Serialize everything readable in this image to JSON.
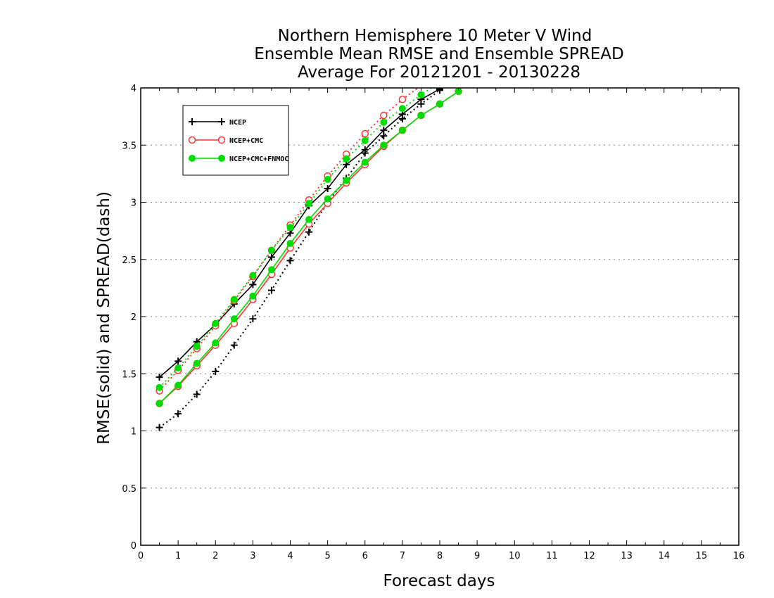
{
  "chart_data": {
    "type": "line",
    "title": [
      "Northern Hemisphere 10 Meter V Wind",
      "Ensemble Mean RMSE and Ensemble SPREAD",
      "Average For 20121201 - 20130228"
    ],
    "xlabel": "Forecast days",
    "ylabel": "RMSE(solid) and SPREAD(dash)",
    "xlim": [
      0,
      16
    ],
    "ylim": [
      0,
      4
    ],
    "xticks": [
      "0",
      "1",
      "2",
      "3",
      "4",
      "5",
      "6",
      "7",
      "8",
      "9",
      "10",
      "11",
      "12",
      "13",
      "14",
      "15",
      "16"
    ],
    "yticks": [
      "0",
      "0.5",
      "1",
      "1.5",
      "2",
      "2.5",
      "3",
      "3.5",
      "4"
    ],
    "grid": "horizontal dotted",
    "legend_position": "top-left",
    "x": [
      0.5,
      1,
      1.5,
      2,
      2.5,
      3,
      3.5,
      4,
      4.5,
      5,
      5.5,
      6,
      6.5,
      7,
      7.5,
      8,
      8.5
    ],
    "series": [
      {
        "name": "NCEP",
        "color": "#000000",
        "marker": "plus",
        "rmse": [
          1.47,
          1.61,
          1.78,
          1.93,
          2.11,
          2.28,
          2.52,
          2.73,
          2.97,
          3.12,
          3.33,
          3.46,
          3.63,
          3.77,
          3.9,
          3.99,
          4.08
        ],
        "spread": [
          1.03,
          1.15,
          1.32,
          1.52,
          1.75,
          1.98,
          2.23,
          2.49,
          2.74,
          3.0,
          3.21,
          3.43,
          3.58,
          3.73,
          3.86,
          3.98,
          4.08
        ]
      },
      {
        "name": "NCEP+CMC",
        "color": "#ff3333",
        "marker": "open-circle",
        "rmse": [
          1.24,
          1.39,
          1.57,
          1.75,
          1.94,
          2.15,
          2.37,
          2.6,
          2.81,
          2.99,
          3.17,
          3.33,
          3.49,
          3.63,
          3.76,
          3.86,
          3.97
        ],
        "spread": [
          1.35,
          1.53,
          1.72,
          1.92,
          2.14,
          2.35,
          2.58,
          2.8,
          3.02,
          3.23,
          3.42,
          3.6,
          3.76,
          3.9,
          4.02,
          4.12,
          4.2
        ]
      },
      {
        "name": "NCEP+CMC+FNMOC",
        "color": "#00dd00",
        "marker": "filled-circle",
        "rmse": [
          1.24,
          1.4,
          1.59,
          1.77,
          1.98,
          2.18,
          2.41,
          2.64,
          2.85,
          3.03,
          3.19,
          3.35,
          3.5,
          3.63,
          3.76,
          3.86,
          3.97
        ],
        "spread": [
          1.38,
          1.55,
          1.74,
          1.94,
          2.15,
          2.36,
          2.58,
          2.78,
          2.99,
          3.2,
          3.38,
          3.54,
          3.7,
          3.82,
          3.94,
          4.05,
          4.14
        ]
      }
    ]
  }
}
